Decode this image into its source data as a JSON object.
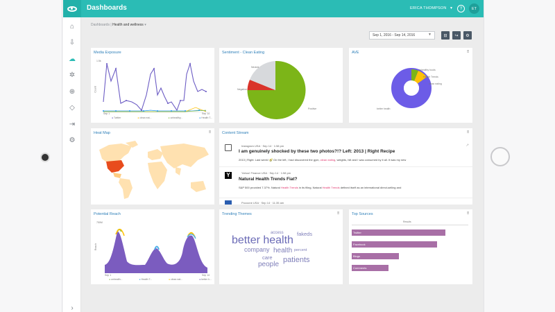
{
  "topbar": {
    "title": "Dashboards",
    "user": "ERICA THOMPSON",
    "help": "?",
    "avatar": "ET"
  },
  "breadcrumb": {
    "parent": "Dashboards",
    "separator": "|",
    "current": "Health and wellness"
  },
  "toolbar": {
    "date_range": "Sep 1, 2016 - Sep 14, 2016"
  },
  "cards": {
    "media_exposure": {
      "title": "Media Exposure",
      "y_tick_top": "1.5k",
      "ylabel": "Count",
      "x_ticks": [
        "Sep 1",
        "Sep 14"
      ],
      "legend": [
        "Twitter",
        "clean eat...",
        "unhealthy...",
        "Health T..."
      ]
    },
    "sentiment": {
      "title": "Sentiment - Clean Eating",
      "labels": [
        "Neutral",
        "Negative",
        "Positive"
      ]
    },
    "ave": {
      "title": "AVE",
      "labels": [
        "unhealthy foods",
        "Health Trends",
        "clean eating",
        "better health"
      ]
    },
    "heat_map": {
      "title": "Heat Map"
    },
    "content_stream": {
      "title": "Content Stream",
      "items": [
        {
          "source": "Instagram",
          "country": "USA",
          "date": "Sep 14",
          "time": "1:58 pm",
          "title": "I am genuinely shocked by these two photos?!? Left: 2013 | Right Recipe",
          "body_before": "2013 | Right: Last week! 🥑 On the left, I had discovered the gym, ",
          "body_highlight": "clean eating",
          "body_after": ", weights, hiit and I was consumed by it all. It was my new"
        },
        {
          "source": "Yahoo! Finance",
          "country": "USA",
          "date": "Sep 14",
          "time": "1:58 pm",
          "title": "Natural Health Trends Fiat?",
          "body_before": "S&P 500 provided 7.37%. Natural ",
          "body_highlight": "Health Trends",
          "body_mid": " in its filing, Natural ",
          "body_highlight2": "Health Trends",
          "body_after": " defined itself as an international direct-selling and"
        },
        {
          "source": "Pocoone",
          "country": "USA",
          "date": "Sep 14",
          "time": "11:35 am"
        }
      ]
    },
    "potential_reach": {
      "title": "Potential Reach",
      "y_tick_top": "750M",
      "ylabel": "Reach",
      "x_ticks": [
        "Sep 1",
        "Sep 14"
      ],
      "legend": [
        "unhealth...",
        "Health T...",
        "clean eat...",
        "better h..."
      ]
    },
    "trending_themes": {
      "title": "Trending Themes",
      "words": [
        "better health",
        "access",
        "fakeds",
        "company",
        "health",
        "percent",
        "care",
        "patients",
        "people"
      ]
    },
    "top_sources": {
      "title": "Top Sources",
      "axis_label": "Results",
      "bars": [
        {
          "label": "Twitter",
          "value": 90
        },
        {
          "label": "Facebook",
          "value": 82
        },
        {
          "label": "Blogs",
          "value": 45
        },
        {
          "label": "Comments",
          "value": 35
        }
      ]
    }
  },
  "colors": {
    "accent": "#2bbcb5",
    "title_blue": "#2e7fb8",
    "purple": "#8e6bbf",
    "green": "#7cb518",
    "red": "#d9332a"
  }
}
